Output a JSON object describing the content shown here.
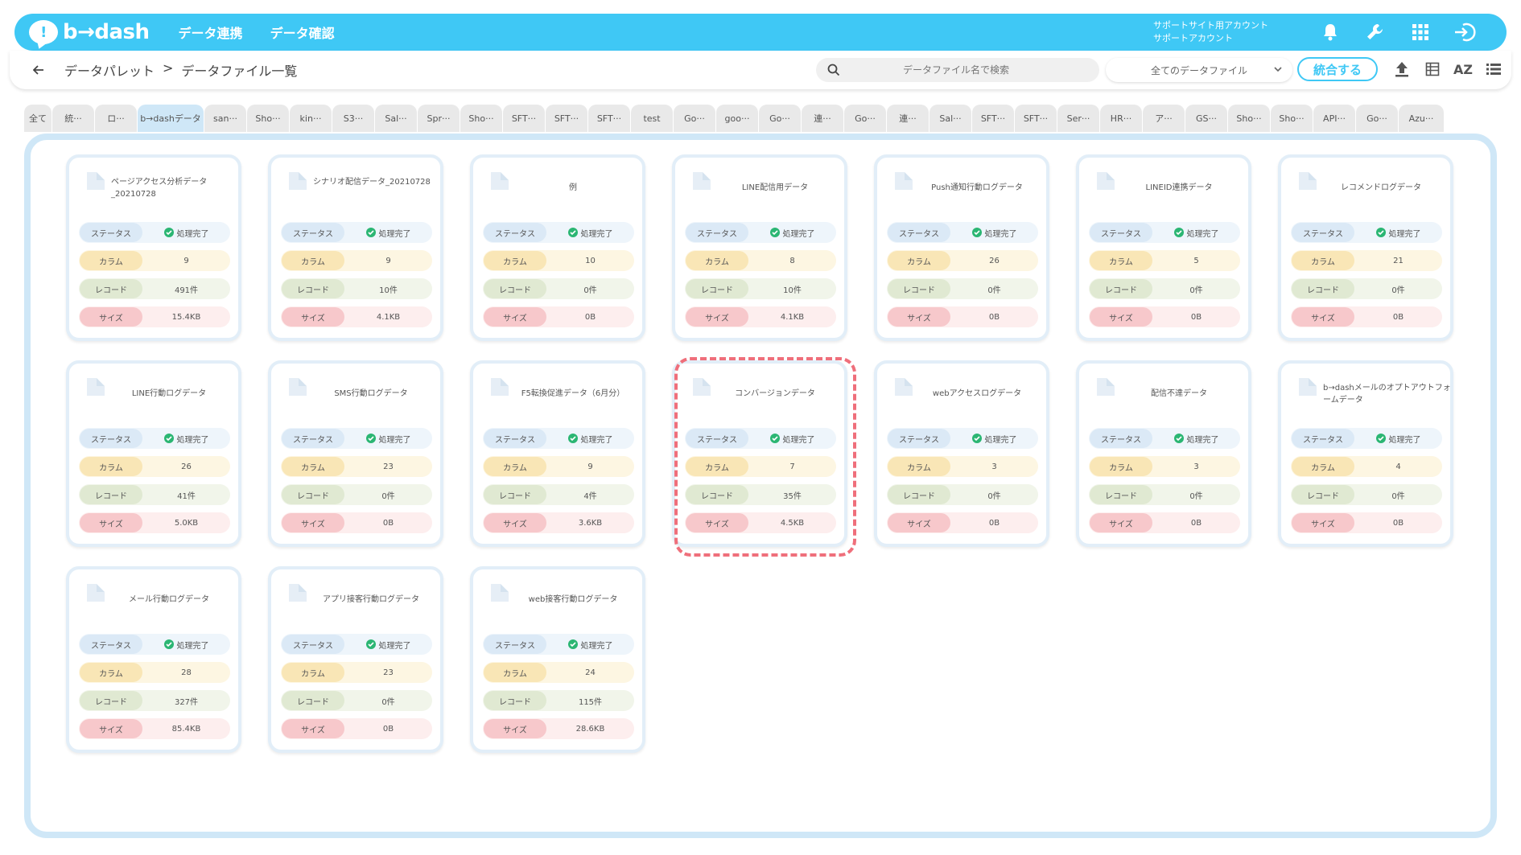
{
  "header": {
    "logo_text": "b→dash",
    "nav": [
      "データ連携",
      "データ確認"
    ],
    "account_line1": "サポートサイト用アカウント",
    "account_line2": "サポートアカウント",
    "icons": [
      "bell-icon",
      "wrench-icon",
      "grid-icon",
      "logout-icon"
    ]
  },
  "toolbar": {
    "breadcrumb_parent": "データパレット",
    "breadcrumb_sep": ">",
    "breadcrumb_current": "データファイル一覧",
    "search_placeholder": "データファイル名で検索",
    "select_value": "全てのデータファイル",
    "merge_label": "統合する",
    "sort_label": "AZ"
  },
  "tabs": [
    "全て",
    "統···",
    "ロ···",
    "b→dashデータ",
    "san···",
    "Sho···",
    "kin···",
    "S3···",
    "Sal···",
    "Spr···",
    "Sho···",
    "SFT···",
    "SFT···",
    "SFT···",
    "test",
    "Go···",
    "goo···",
    "Go···",
    "連···",
    "Go···",
    "連···",
    "Sal···",
    "SFT···",
    "SFT···",
    "Ser···",
    "HR···",
    "ア···",
    "GS···",
    "Sho···",
    "Sho···",
    "API···",
    "Go···",
    "Azu···"
  ],
  "active_tab": 3,
  "labels": {
    "status": "ステータス",
    "column": "カラム",
    "record": "レコード",
    "size": "サイズ"
  },
  "cards": [
    {
      "title": "ページアクセス分析データ_20210728",
      "status": "処理完了",
      "columns": "9",
      "records": "491件",
      "size": "15.4KB"
    },
    {
      "title": "シナリオ配信データ_20210728",
      "status": "処理完了",
      "columns": "9",
      "records": "10件",
      "size": "4.1KB"
    },
    {
      "title": "例",
      "status": "処理完了",
      "columns": "10",
      "records": "0件",
      "size": "0B"
    },
    {
      "title": "LINE配信用データ",
      "status": "処理完了",
      "columns": "8",
      "records": "10件",
      "size": "4.1KB"
    },
    {
      "title": "Push通知行動ログデータ",
      "status": "処理完了",
      "columns": "26",
      "records": "0件",
      "size": "0B"
    },
    {
      "title": "LINEID連携データ",
      "status": "処理完了",
      "columns": "5",
      "records": "0件",
      "size": "0B"
    },
    {
      "title": "レコメンドログデータ",
      "status": "処理完了",
      "columns": "21",
      "records": "0件",
      "size": "0B"
    },
    {
      "title": "LINE行動ログデータ",
      "status": "処理完了",
      "columns": "26",
      "records": "41件",
      "size": "5.0KB"
    },
    {
      "title": "SMS行動ログデータ",
      "status": "処理完了",
      "columns": "23",
      "records": "0件",
      "size": "0B"
    },
    {
      "title": "F5転換促進データ（6月分）",
      "status": "処理完了",
      "columns": "9",
      "records": "4件",
      "size": "3.6KB"
    },
    {
      "title": "コンバージョンデータ",
      "status": "処理完了",
      "columns": "7",
      "records": "35件",
      "size": "4.5KB"
    },
    {
      "title": "webアクセスログデータ",
      "status": "処理完了",
      "columns": "3",
      "records": "0件",
      "size": "0B"
    },
    {
      "title": "配信不達データ",
      "status": "処理完了",
      "columns": "3",
      "records": "0件",
      "size": "0B"
    },
    {
      "title": "b→dashメールのオプトアウトフォームデータ",
      "status": "処理完了",
      "columns": "4",
      "records": "0件",
      "size": "0B"
    },
    {
      "title": "メール行動ログデータ",
      "status": "処理完了",
      "columns": "28",
      "records": "327件",
      "size": "85.4KB"
    },
    {
      "title": "アプリ接客行動ログデータ",
      "status": "処理完了",
      "columns": "23",
      "records": "0件",
      "size": "0B"
    },
    {
      "title": "web接客行動ログデータ",
      "status": "処理完了",
      "columns": "24",
      "records": "115件",
      "size": "28.6KB"
    }
  ]
}
